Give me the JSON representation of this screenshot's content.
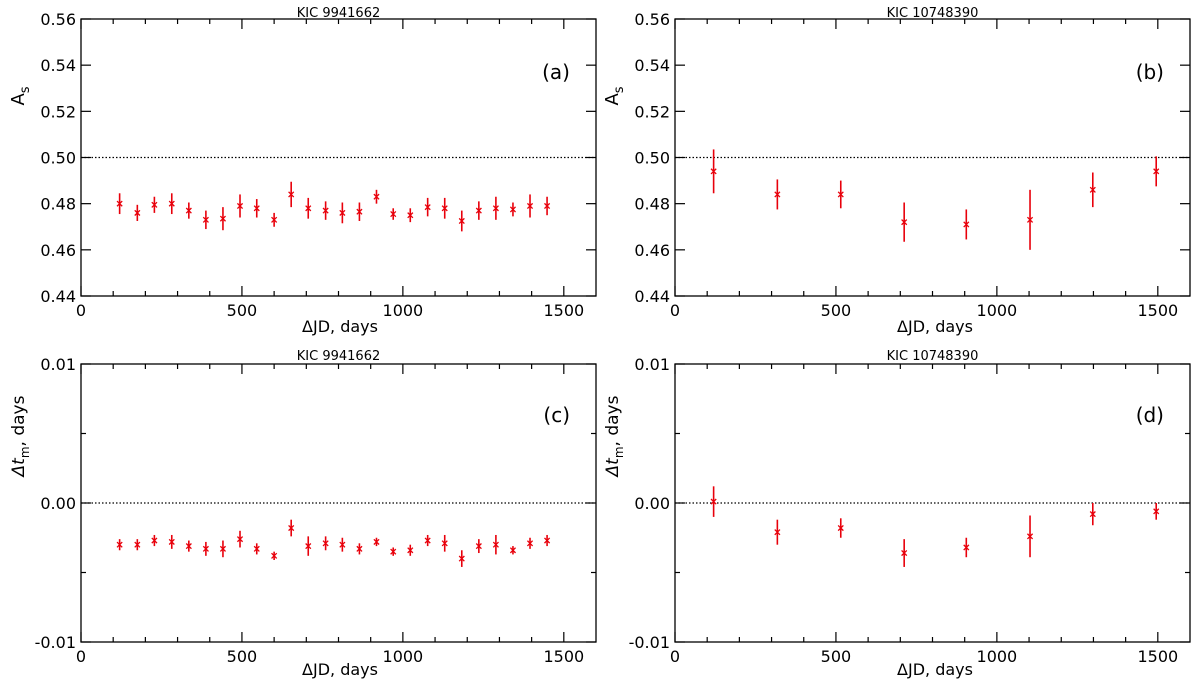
{
  "chart_data": [
    {
      "type": "scatter",
      "title": "KIC 9941662",
      "panel_label": "(a)",
      "xlabel": "ΔJD, days",
      "ylabel": "A_s",
      "ylabel_main": "A",
      "ylabel_sub": "s",
      "xlim": [
        0,
        1600
      ],
      "ylim": [
        0.44,
        0.56
      ],
      "xticks": [
        0,
        500,
        1000,
        1500
      ],
      "xtick_labels": [
        "0",
        "500",
        "1000",
        "1500"
      ],
      "yticks": [
        0.44,
        0.46,
        0.48,
        0.5,
        0.52,
        0.54,
        0.56
      ],
      "ytick_labels": [
        "0.44",
        "0.46",
        "0.48",
        "0.50",
        "0.52",
        "0.54",
        "0.56"
      ],
      "reference_line": 0.5,
      "color": "#e8000b",
      "x": [
        120,
        175,
        228,
        282,
        335,
        388,
        441,
        494,
        546,
        600,
        653,
        706,
        760,
        812,
        865,
        918,
        970,
        1023,
        1077,
        1130,
        1183,
        1236,
        1289,
        1342,
        1395,
        1448
      ],
      "y": [
        0.48,
        0.476,
        0.4795,
        0.48,
        0.477,
        0.473,
        0.4735,
        0.479,
        0.478,
        0.473,
        0.484,
        0.478,
        0.477,
        0.476,
        0.4765,
        0.483,
        0.4755,
        0.475,
        0.4785,
        0.478,
        0.4725,
        0.477,
        0.478,
        0.4775,
        0.479,
        0.479
      ],
      "err": [
        0.0045,
        0.0035,
        0.0035,
        0.0045,
        0.0035,
        0.004,
        0.005,
        0.005,
        0.004,
        0.003,
        0.0055,
        0.0045,
        0.004,
        0.0045,
        0.004,
        0.003,
        0.0025,
        0.003,
        0.004,
        0.0045,
        0.0045,
        0.004,
        0.005,
        0.003,
        0.005,
        0.004
      ]
    },
    {
      "type": "scatter",
      "title": "KIC 10748390",
      "panel_label": "(b)",
      "xlabel": "ΔJD, days",
      "ylabel": "A_s",
      "ylabel_main": "A",
      "ylabel_sub": "s",
      "xlim": [
        0,
        1600
      ],
      "ylim": [
        0.44,
        0.56
      ],
      "xticks": [
        0,
        500,
        1000,
        1500
      ],
      "xtick_labels": [
        "0",
        "500",
        "1000",
        "1500"
      ],
      "yticks": [
        0.44,
        0.46,
        0.48,
        0.5,
        0.52,
        0.54,
        0.56
      ],
      "ytick_labels": [
        "0.44",
        "0.46",
        "0.48",
        "0.50",
        "0.52",
        "0.54",
        "0.56"
      ],
      "reference_line": 0.5,
      "color": "#e8000b",
      "x": [
        120,
        318,
        515,
        712,
        905,
        1103,
        1298,
        1495
      ],
      "y": [
        0.494,
        0.484,
        0.484,
        0.472,
        0.471,
        0.473,
        0.486,
        0.494
      ],
      "err": [
        0.0095,
        0.0065,
        0.006,
        0.0085,
        0.0065,
        0.013,
        0.0075,
        0.0065
      ]
    },
    {
      "type": "scatter",
      "title": "KIC 9941662",
      "panel_label": "(c)",
      "xlabel": "ΔJD, days",
      "ylabel": "Δt_m, days",
      "ylabel_main": "Δt",
      "ylabel_sub": "m",
      "ylabel_tail": ", days",
      "xlim": [
        0,
        1600
      ],
      "ylim": [
        -0.01,
        0.01
      ],
      "xticks": [
        0,
        500,
        1000,
        1500
      ],
      "xtick_labels": [
        "0",
        "500",
        "1000",
        "1500"
      ],
      "yticks": [
        -0.01,
        0.0,
        0.01
      ],
      "ytick_labels": [
        "-0.01",
        "0.00",
        "0.01"
      ],
      "yminor_ticks": [
        -0.005,
        0.005
      ],
      "reference_line": 0.0,
      "color": "#e8000b",
      "x": [
        120,
        175,
        228,
        282,
        335,
        388,
        441,
        494,
        546,
        600,
        653,
        706,
        760,
        812,
        865,
        918,
        970,
        1023,
        1077,
        1130,
        1183,
        1236,
        1289,
        1342,
        1395,
        1448
      ],
      "y": [
        -0.003,
        -0.003,
        -0.0027,
        -0.0028,
        -0.0031,
        -0.0033,
        -0.0033,
        -0.0026,
        -0.0033,
        -0.0038,
        -0.0018,
        -0.0031,
        -0.0029,
        -0.003,
        -0.0033,
        -0.0028,
        -0.0035,
        -0.0034,
        -0.0027,
        -0.0029,
        -0.004,
        -0.0031,
        -0.003,
        -0.0034,
        -0.0029,
        -0.0027
      ],
      "err": [
        0.0004,
        0.0004,
        0.0004,
        0.0005,
        0.0004,
        0.0005,
        0.0006,
        0.0006,
        0.0004,
        0.0003,
        0.0006,
        0.0007,
        0.0005,
        0.0005,
        0.0004,
        0.0003,
        0.0003,
        0.0004,
        0.0004,
        0.0006,
        0.0006,
        0.0005,
        0.0007,
        0.0003,
        0.0004,
        0.0004
      ]
    },
    {
      "type": "scatter",
      "title": "KIC 10748390",
      "panel_label": "(d)",
      "xlabel": "ΔJD, days",
      "ylabel": "Δt_m, days",
      "ylabel_main": "Δt",
      "ylabel_sub": "m",
      "ylabel_tail": ", days",
      "xlim": [
        0,
        1600
      ],
      "ylim": [
        -0.01,
        0.01
      ],
      "xticks": [
        0,
        500,
        1000,
        1500
      ],
      "xtick_labels": [
        "0",
        "500",
        "1000",
        "1500"
      ],
      "yticks": [
        -0.01,
        0.0,
        0.01
      ],
      "ytick_labels": [
        "-0.01",
        "0.00",
        "0.01"
      ],
      "yminor_ticks": [
        -0.005,
        0.005
      ],
      "reference_line": 0.0,
      "color": "#e8000b",
      "x": [
        120,
        318,
        515,
        712,
        905,
        1103,
        1298,
        1495
      ],
      "y": [
        0.0001,
        -0.0021,
        -0.0018,
        -0.0036,
        -0.0032,
        -0.0024,
        -0.0008,
        -0.0006
      ],
      "err": [
        0.0011,
        0.0009,
        0.0007,
        0.001,
        0.0007,
        0.0015,
        0.0008,
        0.0006
      ]
    }
  ]
}
